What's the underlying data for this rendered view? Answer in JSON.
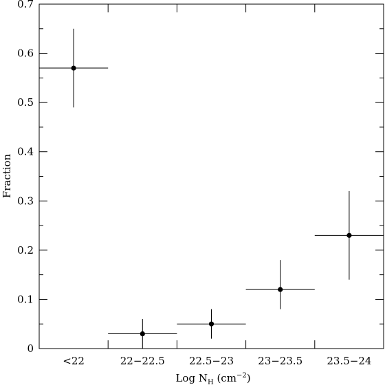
{
  "chart_data": {
    "type": "scatter",
    "title": "",
    "ylabel": "Fraction",
    "xlabel": {
      "main": "Log N",
      "subscript": "H",
      "unit_open": " (cm",
      "exponent": "−2",
      "unit_close": ")"
    },
    "categories": [
      "<22",
      "22−22.5",
      "22.5−23",
      "23−23.5",
      "23.5−24"
    ],
    "values": [
      0.57,
      0.03,
      0.05,
      0.12,
      0.23
    ],
    "error_low": [
      0.49,
      0.0,
      0.02,
      0.08,
      0.14
    ],
    "error_high": [
      0.65,
      0.06,
      0.08,
      0.18,
      0.32
    ],
    "ylim": [
      0,
      0.7
    ],
    "y_ticks": [
      "0",
      "0.1",
      "0.2",
      "0.3",
      "0.4",
      "0.5",
      "0.6",
      "0.7"
    ],
    "y_tick_values": [
      0,
      0.1,
      0.2,
      0.3,
      0.4,
      0.5,
      0.6,
      0.7
    ],
    "grid": false,
    "style": {
      "line_color": "#000000",
      "background": "#ffffff"
    }
  }
}
